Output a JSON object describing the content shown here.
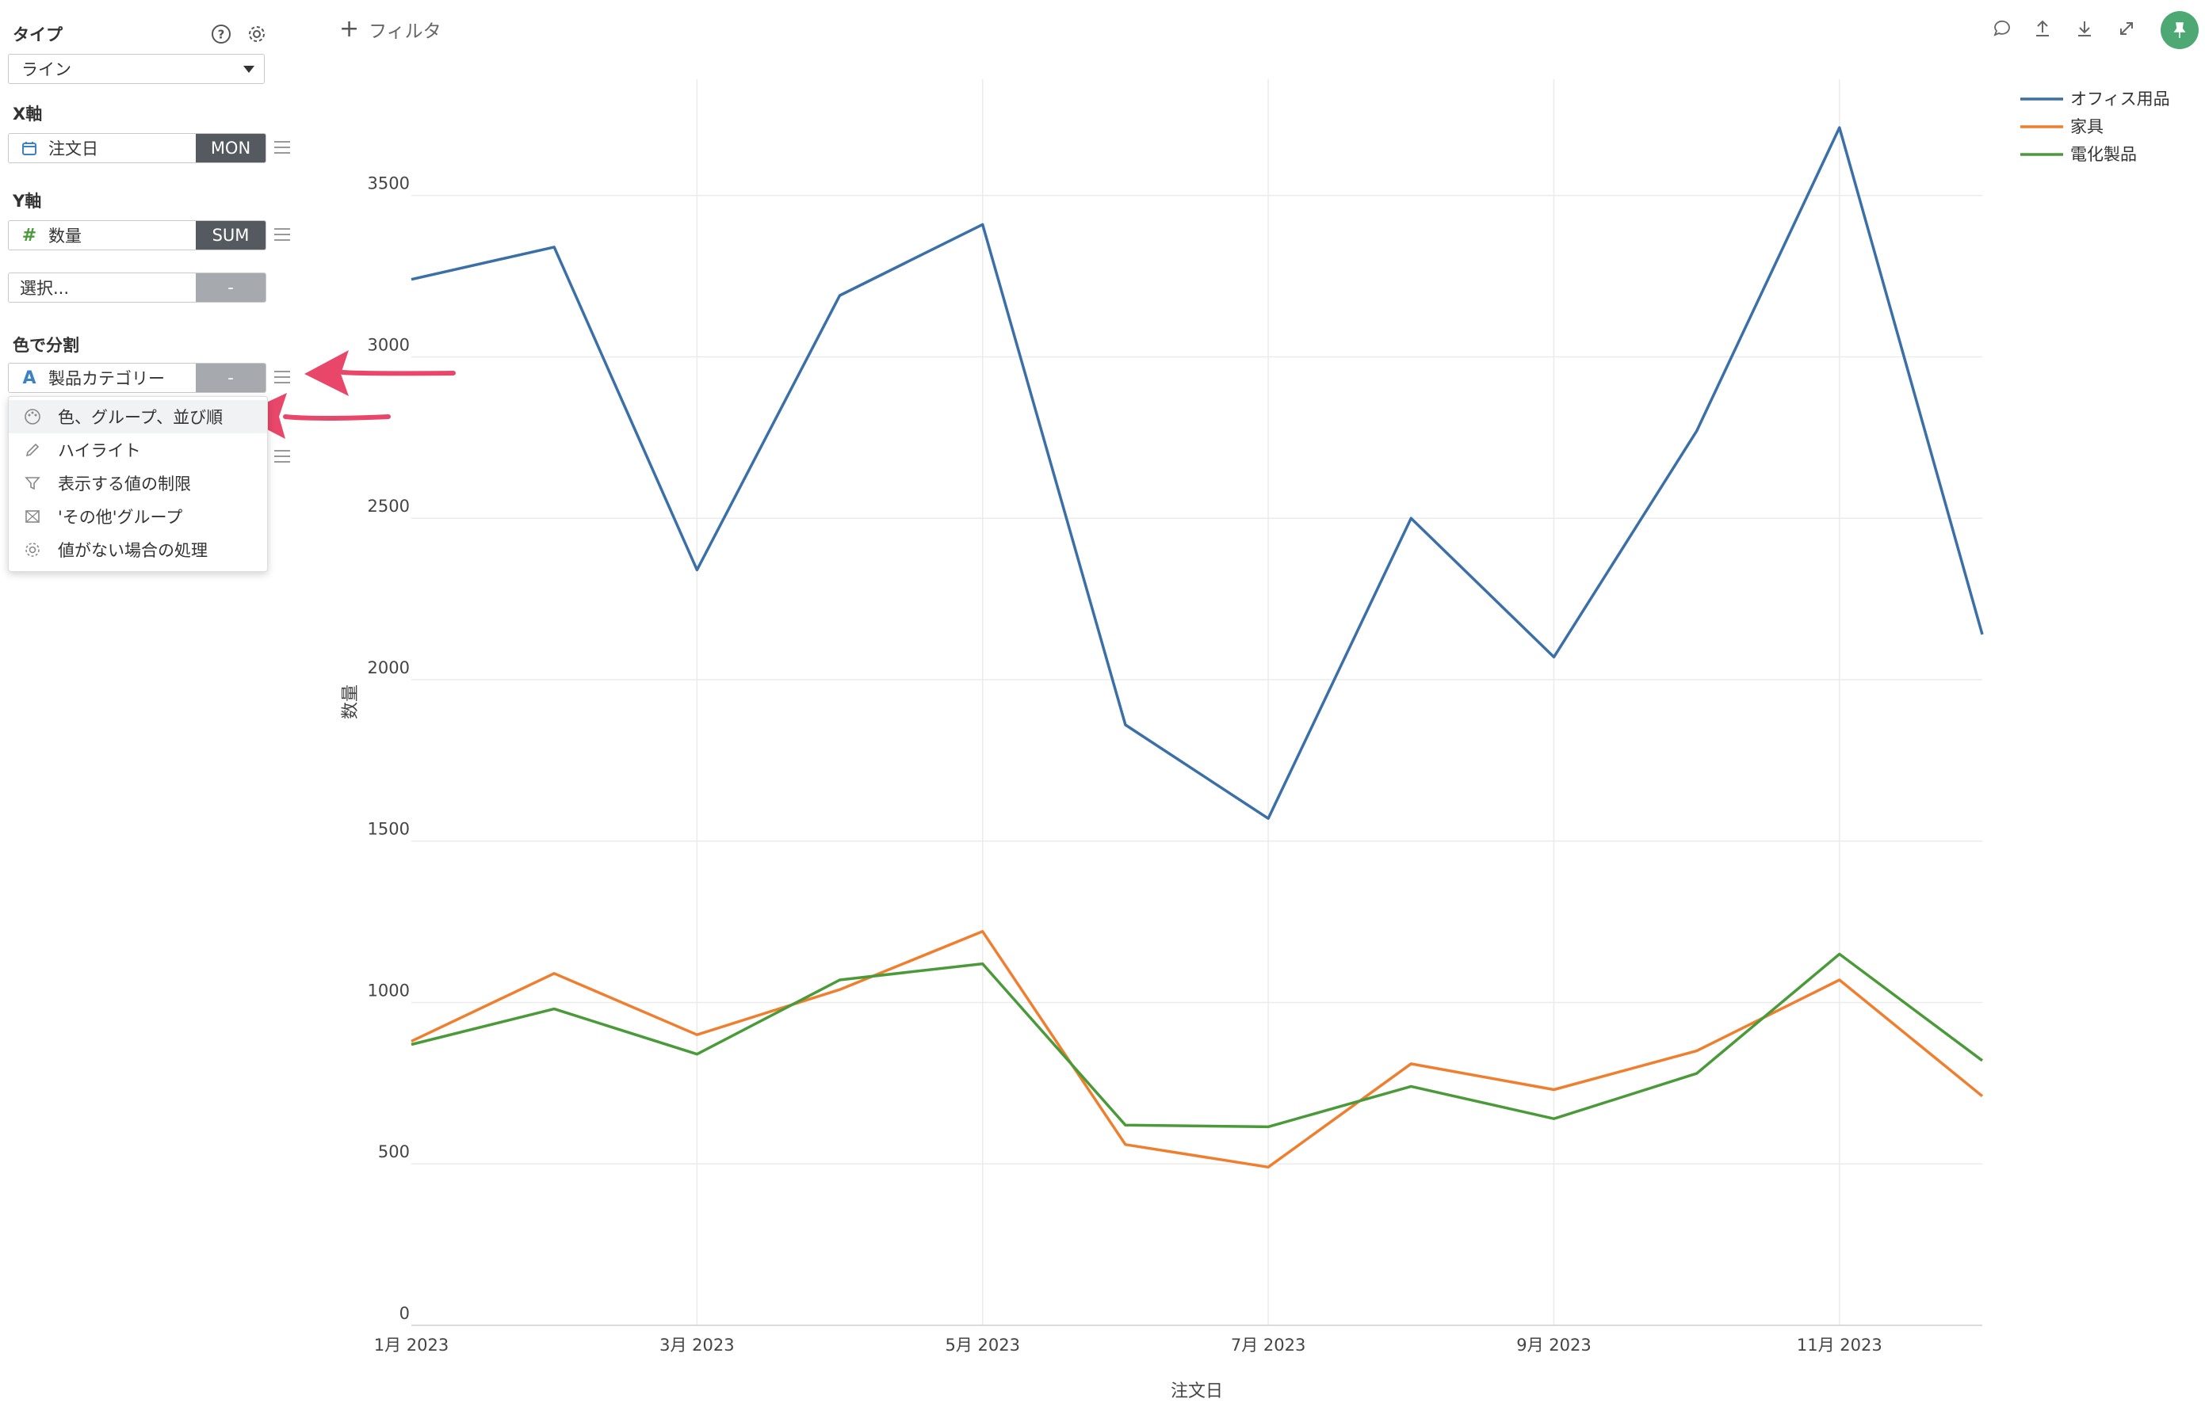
{
  "sidebar": {
    "type": {
      "label": "タイプ",
      "value": "ライン"
    },
    "x_axis": {
      "label": "X軸",
      "field": "注文日",
      "agg": "MON"
    },
    "y_axis": {
      "label": "Y軸",
      "field": "数量",
      "agg": "SUM"
    },
    "y_axis_extra": {
      "placeholder": "選択...",
      "agg": "-"
    },
    "color_split": {
      "label": "色で分割",
      "field": "製品カテゴリー",
      "agg": "-"
    },
    "dropdown_items": [
      {
        "label": "色、グループ、並び順",
        "icon": "palette-icon"
      },
      {
        "label": "ハイライト",
        "icon": "highlighter-icon"
      },
      {
        "label": "表示する値の制限",
        "icon": "filter-icon"
      },
      {
        "label": "'その他'グループ",
        "icon": "group-icon"
      },
      {
        "label": "値がない場合の処理",
        "icon": "gear-icon"
      }
    ]
  },
  "header": {
    "filter_label": "フィルタ"
  },
  "toolbar": {
    "icons": [
      "comment-icon",
      "upload-icon",
      "download-icon",
      "expand-icon",
      "pin-icon"
    ]
  },
  "colors": {
    "office": "#3a6fa8",
    "furniture": "#ef7f2f",
    "electronics": "#4a9a3a",
    "pin": "#4ea873",
    "arrow": "#e8476a"
  },
  "chart_data": {
    "type": "line",
    "xlabel": "注文日",
    "ylabel": "数量",
    "x": [
      "2023-01",
      "2023-02",
      "2023-03",
      "2023-04",
      "2023-05",
      "2023-06",
      "2023-07",
      "2023-08",
      "2023-09",
      "2023-10",
      "2023-11",
      "2023-12"
    ],
    "x_tick_labels": [
      "1月 2023",
      "3月 2023",
      "5月 2023",
      "7月 2023",
      "9月 2023",
      "11月 2023"
    ],
    "y_ticks": [
      0,
      500,
      1000,
      1500,
      2000,
      2500,
      3000,
      3500
    ],
    "ylim": [
      0,
      3860
    ],
    "grid": true,
    "legend_position": "top-right",
    "series": [
      {
        "name": "オフィス用品",
        "color": "#3a6fa8",
        "values": [
          3240,
          3340,
          2340,
          3190,
          3410,
          1860,
          1570,
          2500,
          2070,
          2770,
          3710,
          2140
        ]
      },
      {
        "name": "家具",
        "color": "#ef7f2f",
        "values": [
          880,
          1090,
          900,
          1040,
          1220,
          560,
          490,
          810,
          730,
          850,
          1070,
          710
        ]
      },
      {
        "name": "電化製品",
        "color": "#4a9a3a",
        "values": [
          870,
          980,
          840,
          1070,
          1120,
          620,
          615,
          740,
          640,
          780,
          1150,
          820
        ]
      }
    ]
  }
}
